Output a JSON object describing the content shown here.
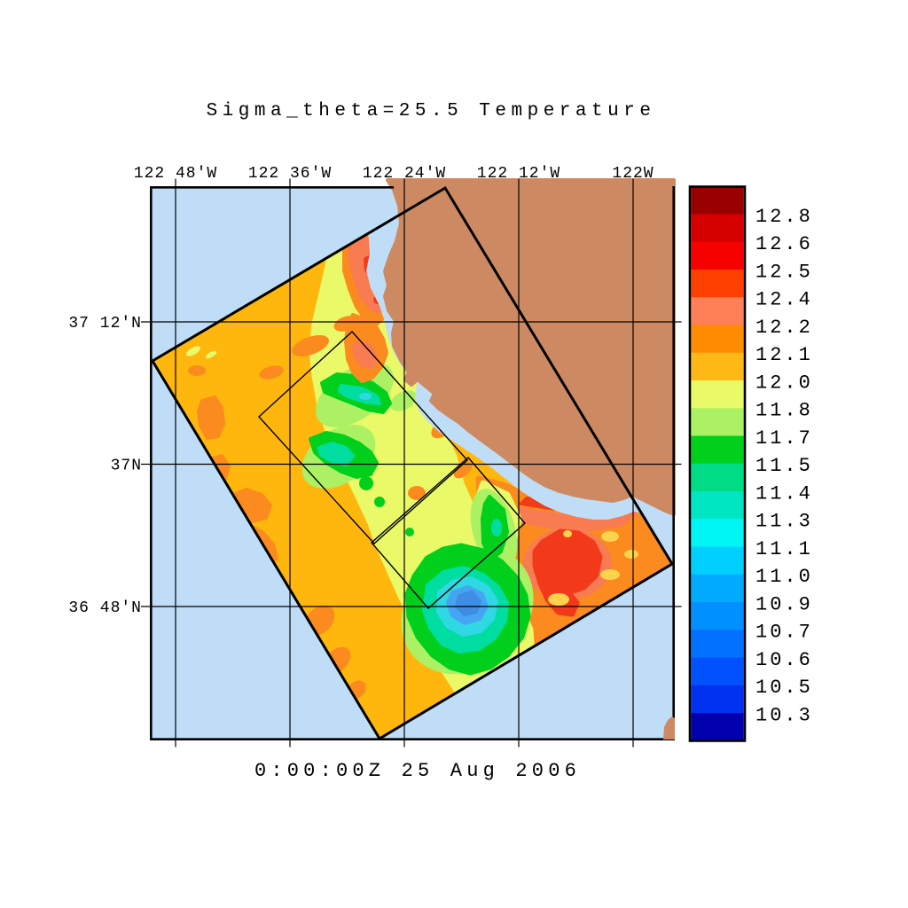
{
  "title": "Sigma_theta=25.5 Temperature",
  "timestamp": "0:00:00Z  25 Aug 2006",
  "axes": {
    "top": [
      "122 48'W",
      "122 36'W",
      "122 24'W",
      "122 12'W",
      "122W"
    ],
    "left": [
      "37 12'N",
      "37N",
      "36 48'N"
    ]
  },
  "colorbar": {
    "labels": [
      "12.8",
      "12.6",
      "12.5",
      "12.4",
      "12.2",
      "12.1",
      "12.0",
      "11.8",
      "11.7",
      "11.5",
      "11.4",
      "11.3",
      "11.1",
      "11.0",
      "10.9",
      "10.7",
      "10.6",
      "10.5",
      "10.3"
    ],
    "colors": [
      "#9B0000",
      "#D60000",
      "#F60000",
      "#FF4000",
      "#FF7F56",
      "#FF8C00",
      "#FFB917",
      "#E9F968",
      "#ACF163",
      "#00D01C",
      "#00DC86",
      "#00E6C2",
      "#00F5F5",
      "#00D0FF",
      "#00AAFF",
      "#0090FF",
      "#0072FF",
      "#0052FF",
      "#0032F0",
      "#0000AE"
    ]
  },
  "palette": {
    "ocean": "#BFDDF6",
    "land": "#CD8A62",
    "amber": "#FFB60D",
    "orange": "#FB8B1E",
    "salmon": "#F97B52",
    "red": "#F23A1B",
    "yellow": "#FFD44C",
    "ygreen": "#E9F968",
    "lgreen": "#ACF163",
    "green": "#00D01C",
    "teal": "#00DDA0",
    "cyan": "#2FD8E2",
    "skyblue": "#45A5F2",
    "blue": "#3E8CE4",
    "outline": "#000000"
  },
  "chart_data": {
    "type": "heatmap",
    "title": "Sigma_theta=25.5 Temperature",
    "annotation": "0:00:00Z  25 Aug 2006",
    "x_axis": {
      "position": "top",
      "ticks": [
        "122 48'W",
        "122 36'W",
        "122 24'W",
        "122 12'W",
        "122W"
      ]
    },
    "y_axis": {
      "position": "left",
      "ticks": [
        "37 12'N",
        "37N",
        "36 48'N"
      ]
    },
    "grid": true,
    "legend_position": "right colorbar",
    "colorbar_scale": {
      "n_segments": 20,
      "boundary_labels": [
        "12.8",
        "12.6",
        "12.5",
        "12.4",
        "12.2",
        "12.1",
        "12.0",
        "11.8",
        "11.7",
        "11.5",
        "11.4",
        "11.3",
        "11.1",
        "11.0",
        "10.9",
        "10.7",
        "10.6",
        "10.5",
        "10.3"
      ],
      "top_color": "#9B0000",
      "bottom_color": "#0000AE"
    },
    "field": {
      "dominant_band": "12.0-12.1 (amber/orange)",
      "features": [
        "rotated rectangular model domain off the central California coast with two smaller nested sub-domain outlines along its NW-SE diagonal",
        "land (Monterey Bay coastline) in tan in the upper-right, separated from the field by a light-blue coastal strip",
        "warm salmon/red patch (~12.2-12.5) along the coast near 122 26'W, 37 6'N",
        "cool green filaments (~11.5-11.7) with teal cores through the domain center",
        "cold core (~11.0-11.1, blue) centered near 122 22'W, 36 47'N surrounded by cyan/teal/green rings",
        "warm orange/red region (~12.2-12.5) with small yellow spots in the southeast corner of the domain"
      ]
    }
  }
}
